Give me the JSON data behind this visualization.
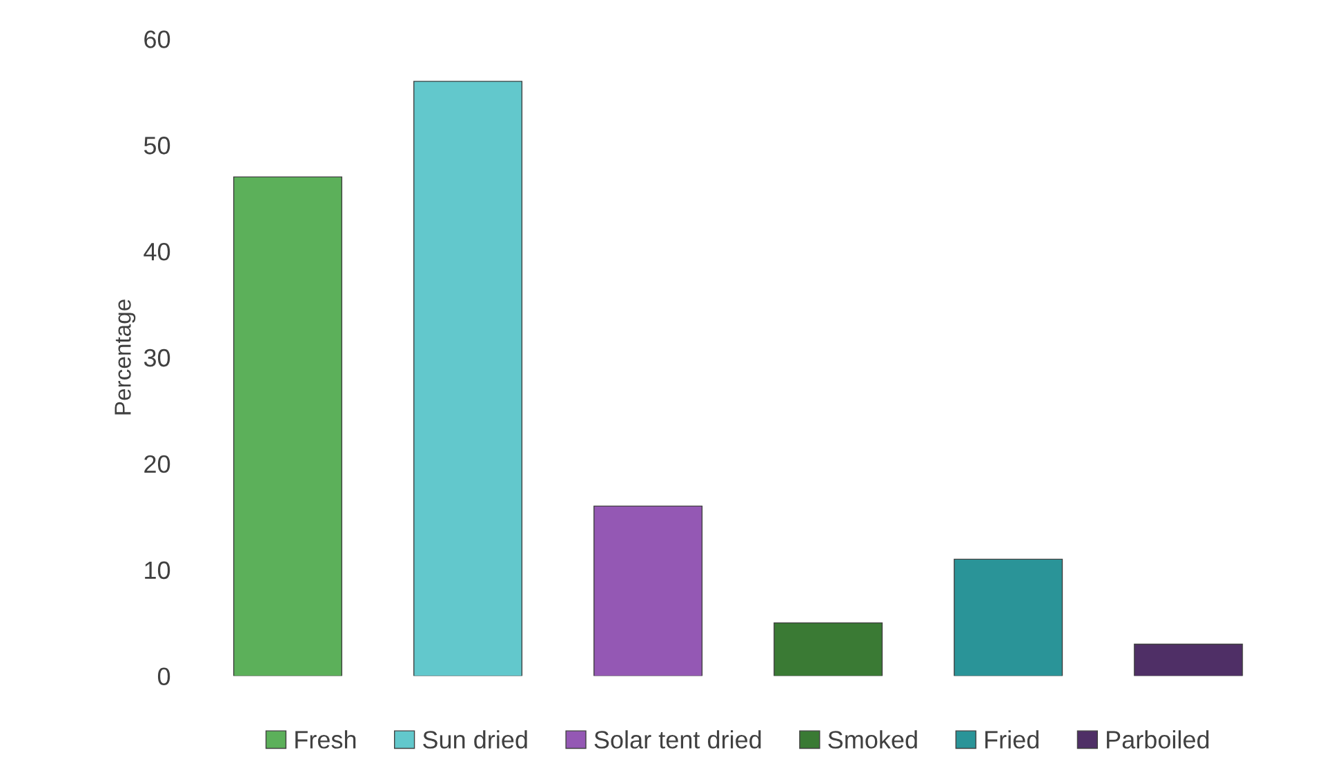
{
  "chart_data": {
    "type": "bar",
    "ylabel": "Percentage",
    "categories": [
      null,
      null,
      null,
      null,
      null,
      null
    ],
    "stacked": true,
    "series": [
      {
        "name": "Fresh",
        "color": "#5cb05a",
        "values": [
          47,
          null,
          null,
          null,
          null,
          null
        ]
      },
      {
        "name": "Sun dried",
        "color": "#62c8cc",
        "values": [
          null,
          56,
          null,
          null,
          null,
          null
        ]
      },
      {
        "name": "Solar tent dried",
        "color": "#9458b4",
        "values": [
          null,
          null,
          16,
          null,
          null,
          null
        ]
      },
      {
        "name": "Smoked",
        "color": "#3a7a34",
        "values": [
          null,
          null,
          null,
          5,
          null,
          null
        ]
      },
      {
        "name": "Fried",
        "color": "#2a9498",
        "values": [
          null,
          null,
          null,
          null,
          11,
          null
        ]
      },
      {
        "name": "Parboiled",
        "color": "#4f2f66",
        "values": [
          null,
          null,
          null,
          null,
          null,
          3
        ]
      }
    ],
    "ylim": [
      0,
      60
    ],
    "yticks": [
      0,
      10,
      20,
      30,
      40,
      50,
      60
    ],
    "tick_labels": "y",
    "grid": false,
    "legend": "bottom"
  }
}
